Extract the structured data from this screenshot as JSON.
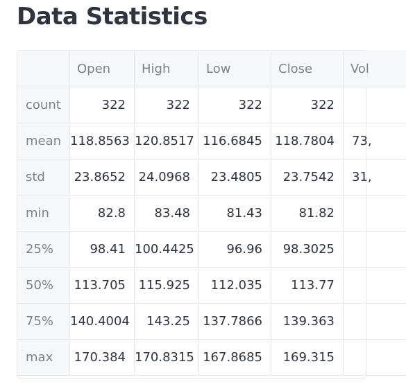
{
  "page": {
    "title": "Data Statistics"
  },
  "table": {
    "columns": [
      "",
      "Open",
      "High",
      "Low",
      "Close",
      "Vol"
    ],
    "rows": [
      {
        "label": "count",
        "values": [
          "322",
          "322",
          "322",
          "322",
          ""
        ]
      },
      {
        "label": "mean",
        "values": [
          "118.8563",
          "120.8517",
          "116.6845",
          "118.7804",
          "73,"
        ]
      },
      {
        "label": "std",
        "values": [
          "23.8652",
          "24.0968",
          "23.4805",
          "23.7542",
          "31,"
        ]
      },
      {
        "label": "min",
        "values": [
          "82.8",
          "83.48",
          "81.43",
          "81.82",
          ""
        ]
      },
      {
        "label": "25%",
        "values": [
          "98.41",
          "100.4425",
          "96.96",
          "98.3025",
          ""
        ]
      },
      {
        "label": "50%",
        "values": [
          "113.705",
          "115.925",
          "112.035",
          "113.77",
          ""
        ]
      },
      {
        "label": "75%",
        "values": [
          "140.4004",
          "143.25",
          "137.7866",
          "139.363",
          ""
        ]
      },
      {
        "label": "max",
        "values": [
          "170.384",
          "170.8315",
          "167.8685",
          "169.315",
          ""
        ]
      }
    ]
  }
}
